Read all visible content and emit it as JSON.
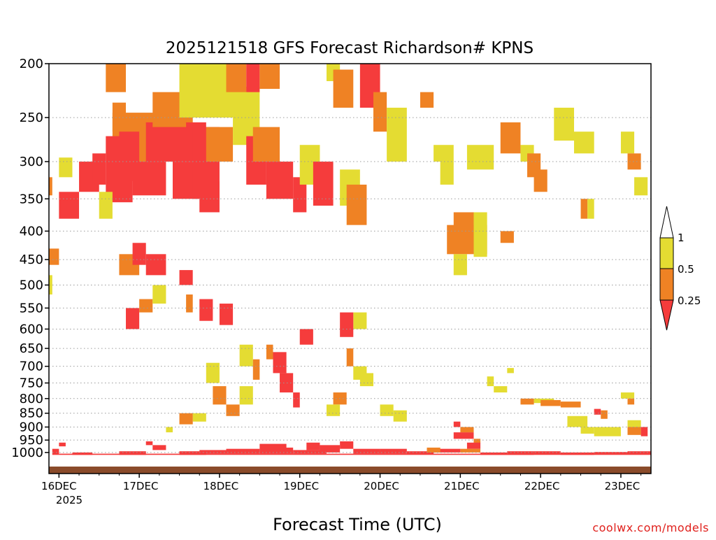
{
  "chart_data": {
    "type": "heatmap",
    "title": "2025121518 GFS Forecast Richardson# KPNS",
    "xlabel": "Forecast Time (UTC)",
    "ylabel": "",
    "y_scale": "log",
    "y_ticks": [
      200,
      250,
      300,
      350,
      400,
      450,
      500,
      550,
      600,
      650,
      700,
      750,
      800,
      850,
      900,
      950,
      1000
    ],
    "ylim": [
      200,
      1060
    ],
    "x_ticks": [
      "16DEC",
      "17DEC",
      "18DEC",
      "19DEC",
      "20DEC",
      "21DEC",
      "22DEC",
      "23DEC"
    ],
    "x_year": "2025",
    "xlim_hours": [
      -3,
      177
    ],
    "grid": true,
    "colorbar": {
      "labels": [
        "1",
        "0.5",
        "0.25"
      ],
      "bins": [
        {
          "range": "0.5-1",
          "color": "#e4dc32"
        },
        {
          "range": "0.25-0.5",
          "color": "#ef8224"
        },
        {
          "range": "<0.25",
          "color": "#f53c3c"
        }
      ]
    },
    "legend_placement": "right",
    "note": "Cells give approximate regions of low Richardson number read from the image: [hour_start, hour_end, pressure_top_hPa, pressure_bottom_hPa, bin]",
    "cells": [
      [
        14,
        20,
        200,
        225,
        "orange"
      ],
      [
        16,
        20,
        235,
        265,
        "orange"
      ],
      [
        16,
        40,
        245,
        300,
        "orange"
      ],
      [
        18,
        24,
        265,
        325,
        "red"
      ],
      [
        22,
        32,
        300,
        345,
        "red"
      ],
      [
        26,
        44,
        255,
        300,
        "red"
      ],
      [
        28,
        38,
        225,
        260,
        "orange"
      ],
      [
        34,
        44,
        300,
        350,
        "red"
      ],
      [
        40,
        48,
        260,
        350,
        "red"
      ],
      [
        42,
        48,
        325,
        370,
        "red"
      ],
      [
        36,
        54,
        200,
        250,
        "yellow"
      ],
      [
        14,
        22,
        270,
        355,
        "red"
      ],
      [
        6,
        12,
        300,
        340,
        "red"
      ],
      [
        0,
        6,
        340,
        380,
        "red"
      ],
      [
        10,
        14,
        290,
        330,
        "red"
      ],
      [
        44,
        52,
        260,
        300,
        "orange"
      ],
      [
        52,
        60,
        220,
        280,
        "yellow"
      ],
      [
        56,
        62,
        270,
        330,
        "red"
      ],
      [
        58,
        66,
        260,
        300,
        "orange"
      ],
      [
        62,
        70,
        300,
        350,
        "red"
      ],
      [
        70,
        74,
        320,
        370,
        "red"
      ],
      [
        50,
        56,
        200,
        225,
        "orange"
      ],
      [
        56,
        60,
        200,
        225,
        "red"
      ],
      [
        60,
        66,
        200,
        222,
        "orange"
      ],
      [
        80,
        84,
        200,
        215,
        "yellow"
      ],
      [
        82,
        88,
        205,
        240,
        "orange"
      ],
      [
        90,
        96,
        200,
        240,
        "red"
      ],
      [
        94,
        98,
        225,
        265,
        "orange"
      ],
      [
        98,
        104,
        240,
        300,
        "yellow"
      ],
      [
        72,
        78,
        280,
        330,
        "yellow"
      ],
      [
        76,
        82,
        300,
        360,
        "red"
      ],
      [
        84,
        90,
        310,
        360,
        "yellow"
      ],
      [
        86,
        92,
        330,
        390,
        "orange"
      ],
      [
        108,
        112,
        225,
        240,
        "orange"
      ],
      [
        114,
        118,
        300,
        330,
        "yellow"
      ],
      [
        118,
        124,
        370,
        420,
        "orange"
      ],
      [
        116,
        128,
        390,
        440,
        "orange"
      ],
      [
        124,
        128,
        370,
        445,
        "yellow"
      ],
      [
        118,
        122,
        440,
        480,
        "yellow"
      ],
      [
        122,
        130,
        280,
        310,
        "yellow"
      ],
      [
        112,
        118,
        280,
        300,
        "yellow"
      ],
      [
        132,
        138,
        255,
        290,
        "orange"
      ],
      [
        138,
        142,
        280,
        300,
        "yellow"
      ],
      [
        140,
        144,
        290,
        320,
        "orange"
      ],
      [
        142,
        146,
        310,
        340,
        "orange"
      ],
      [
        148,
        154,
        240,
        275,
        "yellow"
      ],
      [
        154,
        160,
        265,
        290,
        "yellow"
      ],
      [
        156,
        158,
        350,
        380,
        "orange"
      ],
      [
        158,
        160,
        350,
        380,
        "yellow"
      ],
      [
        168,
        172,
        265,
        290,
        "yellow"
      ],
      [
        170,
        174,
        290,
        310,
        "orange"
      ],
      [
        132,
        136,
        400,
        420,
        "orange"
      ],
      [
        172,
        176,
        320,
        345,
        "yellow"
      ],
      [
        12,
        16,
        340,
        380,
        "yellow"
      ],
      [
        18,
        24,
        440,
        480,
        "orange"
      ],
      [
        26,
        32,
        440,
        480,
        "red"
      ],
      [
        22,
        26,
        420,
        460,
        "red"
      ],
      [
        20,
        24,
        550,
        600,
        "red"
      ],
      [
        24,
        28,
        530,
        560,
        "orange"
      ],
      [
        28,
        32,
        500,
        540,
        "yellow"
      ],
      [
        36,
        40,
        470,
        500,
        "red"
      ],
      [
        38,
        40,
        520,
        560,
        "orange"
      ],
      [
        42,
        46,
        530,
        580,
        "red"
      ],
      [
        48,
        52,
        540,
        590,
        "red"
      ],
      [
        44,
        48,
        690,
        750,
        "yellow"
      ],
      [
        46,
        50,
        760,
        820,
        "orange"
      ],
      [
        54,
        58,
        640,
        700,
        "yellow"
      ],
      [
        58,
        60,
        680,
        740,
        "orange"
      ],
      [
        62,
        64,
        640,
        680,
        "orange"
      ],
      [
        64,
        68,
        660,
        720,
        "red"
      ],
      [
        66,
        70,
        720,
        780,
        "red"
      ],
      [
        70,
        72,
        780,
        830,
        "red"
      ],
      [
        54,
        58,
        760,
        820,
        "yellow"
      ],
      [
        50,
        54,
        820,
        860,
        "orange"
      ],
      [
        40,
        44,
        850,
        880,
        "yellow"
      ],
      [
        36,
        40,
        850,
        890,
        "orange"
      ],
      [
        32,
        34,
        900,
        920,
        "yellow"
      ],
      [
        72,
        76,
        600,
        640,
        "red"
      ],
      [
        88,
        92,
        560,
        600,
        "yellow"
      ],
      [
        84,
        88,
        560,
        620,
        "red"
      ],
      [
        88,
        92,
        700,
        740,
        "yellow"
      ],
      [
        90,
        94,
        720,
        760,
        "yellow"
      ],
      [
        86,
        88,
        650,
        700,
        "orange"
      ],
      [
        82,
        86,
        780,
        820,
        "orange"
      ],
      [
        80,
        84,
        820,
        860,
        "yellow"
      ],
      [
        96,
        100,
        820,
        860,
        "yellow"
      ],
      [
        100,
        104,
        840,
        880,
        "yellow"
      ],
      [
        118,
        120,
        880,
        900,
        "red"
      ],
      [
        118,
        124,
        920,
        945,
        "red"
      ],
      [
        120,
        124,
        900,
        920,
        "orange"
      ],
      [
        124,
        126,
        945,
        965,
        "orange"
      ],
      [
        122,
        126,
        960,
        985,
        "red"
      ],
      [
        120,
        126,
        985,
        1000,
        "orange"
      ],
      [
        110,
        120,
        985,
        1000,
        "red"
      ],
      [
        130,
        134,
        760,
        780,
        "yellow"
      ],
      [
        138,
        142,
        800,
        820,
        "orange"
      ],
      [
        142,
        148,
        800,
        815,
        "yellow"
      ],
      [
        144,
        150,
        805,
        825,
        "orange"
      ],
      [
        150,
        156,
        810,
        830,
        "orange"
      ],
      [
        152,
        158,
        860,
        900,
        "yellow"
      ],
      [
        156,
        160,
        900,
        925,
        "yellow"
      ],
      [
        160,
        168,
        900,
        935,
        "yellow"
      ],
      [
        170,
        174,
        875,
        900,
        "yellow"
      ],
      [
        170,
        174,
        900,
        930,
        "orange"
      ],
      [
        174,
        176,
        900,
        935,
        "red"
      ],
      [
        168,
        172,
        780,
        800,
        "yellow"
      ],
      [
        170,
        172,
        800,
        820,
        "orange"
      ],
      [
        160,
        162,
        835,
        855,
        "red"
      ],
      [
        162,
        164,
        840,
        870,
        "orange"
      ],
      [
        134,
        136,
        705,
        720,
        "yellow"
      ],
      [
        128,
        130,
        730,
        760,
        "yellow"
      ],
      [
        -3,
        0,
        430,
        460,
        "orange"
      ],
      [
        -3,
        -2,
        480,
        520,
        "yellow"
      ],
      [
        -3,
        -2,
        320,
        345,
        "orange"
      ],
      [
        0,
        4,
        295,
        320,
        "yellow"
      ],
      [
        -2,
        0,
        985,
        1010,
        "red"
      ],
      [
        0,
        2,
        960,
        975,
        "red"
      ],
      [
        4,
        10,
        1000,
        1010,
        "red"
      ],
      [
        18,
        26,
        995,
        1010,
        "red"
      ],
      [
        26,
        28,
        955,
        970,
        "red"
      ],
      [
        28,
        32,
        970,
        990,
        "red"
      ],
      [
        36,
        44,
        995,
        1010,
        "red"
      ],
      [
        42,
        50,
        990,
        1005,
        "red"
      ],
      [
        50,
        60,
        985,
        1005,
        "red"
      ],
      [
        60,
        68,
        965,
        1005,
        "red"
      ],
      [
        66,
        70,
        980,
        1005,
        "red"
      ],
      [
        70,
        80,
        990,
        1005,
        "red"
      ],
      [
        74,
        78,
        960,
        990,
        "red"
      ],
      [
        78,
        84,
        970,
        1000,
        "red"
      ],
      [
        84,
        88,
        955,
        985,
        "red"
      ],
      [
        88,
        96,
        985,
        1005,
        "red"
      ],
      [
        96,
        104,
        985,
        1005,
        "red"
      ],
      [
        104,
        112,
        995,
        1008,
        "red"
      ],
      [
        110,
        114,
        980,
        1000,
        "orange"
      ],
      [
        126,
        134,
        1000,
        1010,
        "red"
      ],
      [
        134,
        142,
        995,
        1010,
        "red"
      ],
      [
        142,
        150,
        995,
        1008,
        "red"
      ],
      [
        150,
        160,
        1000,
        1010,
        "red"
      ],
      [
        160,
        170,
        998,
        1008,
        "red"
      ],
      [
        170,
        177,
        995,
        1008,
        "red"
      ],
      [
        0,
        177,
        1005,
        1010,
        "red"
      ]
    ]
  },
  "credit": "coolwx.com/models"
}
